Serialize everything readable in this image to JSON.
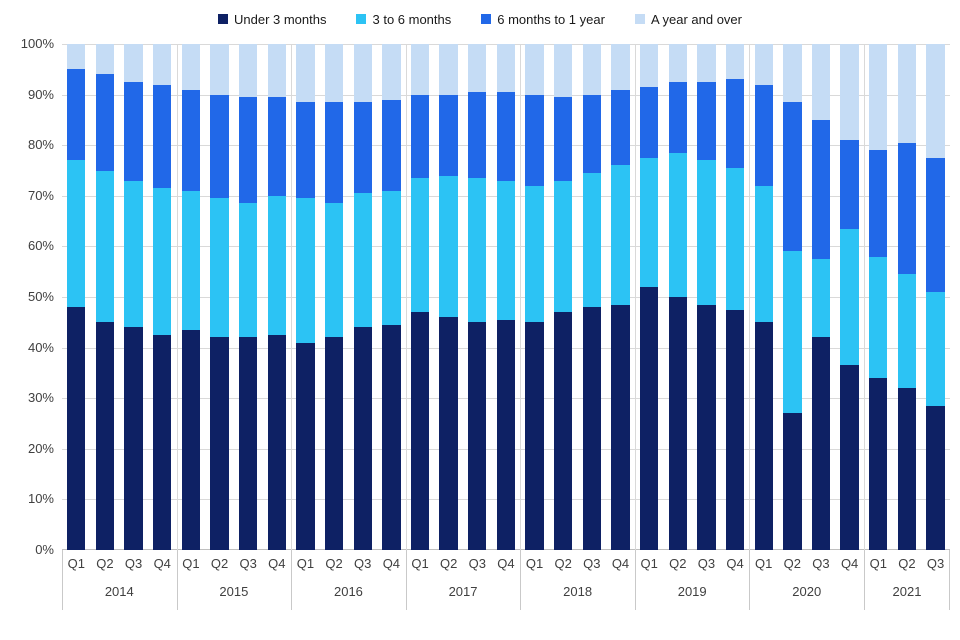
{
  "chart_data": {
    "type": "bar",
    "stacked": true,
    "percent_stacked": true,
    "title": "",
    "xlabel": "",
    "ylabel": "",
    "ylim": [
      0,
      100
    ],
    "grid": true,
    "legend_position": "top",
    "y_ticks": [
      "0%",
      "10%",
      "20%",
      "30%",
      "40%",
      "50%",
      "60%",
      "70%",
      "80%",
      "90%",
      "100%"
    ],
    "categories": [
      "Q1",
      "Q2",
      "Q3",
      "Q4",
      "Q1",
      "Q2",
      "Q3",
      "Q4",
      "Q1",
      "Q2",
      "Q3",
      "Q4",
      "Q1",
      "Q2",
      "Q3",
      "Q4",
      "Q1",
      "Q2",
      "Q3",
      "Q4",
      "Q1",
      "Q2",
      "Q3",
      "Q4",
      "Q1",
      "Q2",
      "Q3",
      "Q4",
      "Q1",
      "Q2",
      "Q3"
    ],
    "groups": [
      {
        "label": "2014",
        "count": 4
      },
      {
        "label": "2015",
        "count": 4
      },
      {
        "label": "2016",
        "count": 4
      },
      {
        "label": "2017",
        "count": 4
      },
      {
        "label": "2018",
        "count": 4
      },
      {
        "label": "2019",
        "count": 4
      },
      {
        "label": "2020",
        "count": 4
      },
      {
        "label": "2021",
        "count": 3
      }
    ],
    "series": [
      {
        "name": "Under 3 months",
        "color": "#0e2164",
        "values": [
          48,
          45,
          44,
          42.5,
          43.5,
          42,
          42,
          42.5,
          41,
          42,
          44,
          44.5,
          47,
          46,
          45,
          45.5,
          45,
          47,
          48,
          48.5,
          52,
          50,
          48.5,
          47.5,
          45,
          27,
          42,
          36.5,
          34,
          32,
          28.5
        ]
      },
      {
        "name": "3 to 6 months",
        "color": "#2cc3f4",
        "values": [
          29,
          30,
          29,
          29,
          27.5,
          27.5,
          26.5,
          27.5,
          28.5,
          26.5,
          26.5,
          26.5,
          26.5,
          28,
          28.5,
          27.5,
          27,
          26,
          26.5,
          27.5,
          25.5,
          28.5,
          28.5,
          28,
          27,
          32,
          15.5,
          27,
          24,
          22.5,
          22.5
        ]
      },
      {
        "name": "6 months to 1 year",
        "color": "#2168e8",
        "values": [
          18,
          19,
          19.5,
          20.5,
          20,
          20.5,
          21,
          19.5,
          19,
          20,
          18,
          18,
          16.5,
          16,
          17,
          17.5,
          18,
          16.5,
          15.5,
          15,
          14,
          14,
          15.5,
          17.5,
          20,
          29.5,
          27.5,
          17.5,
          21,
          26,
          26.5
        ]
      },
      {
        "name": "A year and over",
        "color": "#c5dcf5",
        "values": [
          5,
          6,
          7.5,
          8,
          9,
          10,
          10.5,
          10.5,
          11.5,
          11.5,
          11.5,
          11,
          10,
          10,
          9.5,
          9.5,
          10,
          10.5,
          10,
          9,
          8.5,
          7.5,
          7.5,
          7,
          8,
          11.5,
          15,
          19,
          21,
          19.5,
          22.5
        ]
      }
    ],
    "colors": {
      "gridline": "#d9d9d9",
      "axis_line": "#bfbfbf",
      "separator": "#c9c9c9",
      "axis_text": "#404040",
      "legend_text": "#1a1a1a"
    }
  }
}
